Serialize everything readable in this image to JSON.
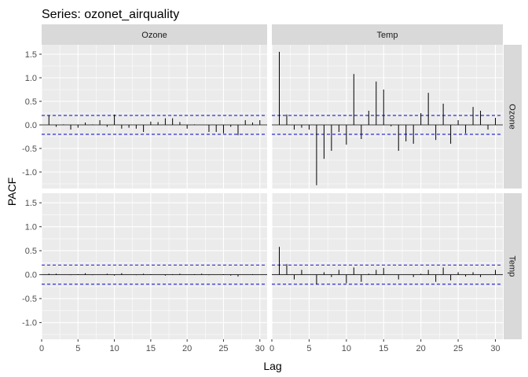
{
  "chart_data": {
    "type": "bar",
    "title": "Series: ozonet_airquality",
    "xlabel": "Lag",
    "ylabel": "PACF",
    "xlim": [
      0,
      31
    ],
    "ylim": [
      -1.35,
      1.7
    ],
    "x_ticks": [
      0,
      5,
      10,
      15,
      20,
      25,
      30
    ],
    "y_ticks": [
      -1.0,
      -0.5,
      0.0,
      0.5,
      1.0,
      1.5
    ],
    "y_tick_labels": [
      "-1.0",
      "-0.5",
      "0.0",
      "0.5",
      "1.0",
      "1.5"
    ],
    "x_tick_labels": [
      "0",
      "5",
      "10",
      "15",
      "20",
      "25",
      "30"
    ],
    "confidence_limit": 0.2,
    "col_strips": [
      "Ozone",
      "Temp"
    ],
    "row_strips": [
      "Ozone",
      "Temp"
    ],
    "panels": [
      {
        "row": 0,
        "col": 0,
        "lags": [
          1,
          2,
          3,
          4,
          5,
          6,
          7,
          8,
          9,
          10,
          11,
          12,
          13,
          14,
          15,
          16,
          17,
          18,
          19,
          20,
          21,
          22,
          23,
          24,
          25,
          26,
          27,
          28,
          29,
          30
        ],
        "values": [
          0.2,
          -0.04,
          0.01,
          -0.1,
          -0.06,
          0.05,
          0.01,
          0.1,
          -0.04,
          0.22,
          -0.08,
          -0.06,
          -0.08,
          -0.15,
          0.07,
          0.06,
          0.14,
          0.14,
          0.06,
          -0.08,
          0.01,
          0.0,
          -0.15,
          -0.15,
          -0.18,
          -0.04,
          -0.22,
          0.1,
          0.05,
          0.1
        ]
      },
      {
        "row": 0,
        "col": 1,
        "lags": [
          1,
          2,
          3,
          4,
          5,
          6,
          7,
          8,
          9,
          10,
          11,
          12,
          13,
          14,
          15,
          16,
          17,
          18,
          19,
          20,
          21,
          22,
          23,
          24,
          25,
          26,
          27,
          28,
          29,
          30
        ],
        "values": [
          1.55,
          0.22,
          -0.1,
          -0.06,
          -0.1,
          -1.28,
          -0.72,
          -0.55,
          -0.15,
          -0.42,
          1.08,
          -0.3,
          0.3,
          0.92,
          0.75,
          -0.03,
          -0.55,
          -0.35,
          -0.4,
          0.25,
          0.68,
          -0.32,
          0.45,
          -0.4,
          0.1,
          -0.18,
          0.38,
          0.3,
          -0.1,
          0.15
        ]
      },
      {
        "row": 1,
        "col": 0,
        "lags": [
          1,
          2,
          3,
          4,
          5,
          6,
          7,
          8,
          9,
          10,
          11,
          12,
          13,
          14,
          15,
          16,
          17,
          18,
          19,
          20,
          21,
          22,
          23,
          24,
          25,
          26,
          27,
          28,
          29,
          30
        ],
        "values": [
          0.02,
          0.02,
          0.0,
          -0.01,
          0.01,
          0.03,
          -0.01,
          0.0,
          0.02,
          -0.02,
          0.03,
          0.0,
          -0.01,
          0.02,
          0.01,
          0.0,
          -0.02,
          0.01,
          0.02,
          0.0,
          0.01,
          0.02,
          -0.01,
          0.0,
          0.01,
          -0.02,
          -0.04,
          0.0,
          0.01,
          0.0
        ]
      },
      {
        "row": 1,
        "col": 1,
        "lags": [
          1,
          2,
          3,
          4,
          5,
          6,
          7,
          8,
          9,
          10,
          11,
          12,
          13,
          14,
          15,
          16,
          17,
          18,
          19,
          20,
          21,
          22,
          23,
          24,
          25,
          26,
          27,
          28,
          29,
          30
        ],
        "values": [
          0.58,
          0.22,
          -0.1,
          0.1,
          0.0,
          -0.2,
          0.05,
          -0.05,
          0.1,
          -0.18,
          0.15,
          -0.15,
          0.02,
          0.1,
          0.14,
          0.0,
          -0.1,
          0.0,
          -0.05,
          0.02,
          0.1,
          -0.15,
          0.15,
          -0.12,
          0.05,
          -0.04,
          0.05,
          -0.05,
          0.0,
          0.1
        ]
      }
    ]
  }
}
